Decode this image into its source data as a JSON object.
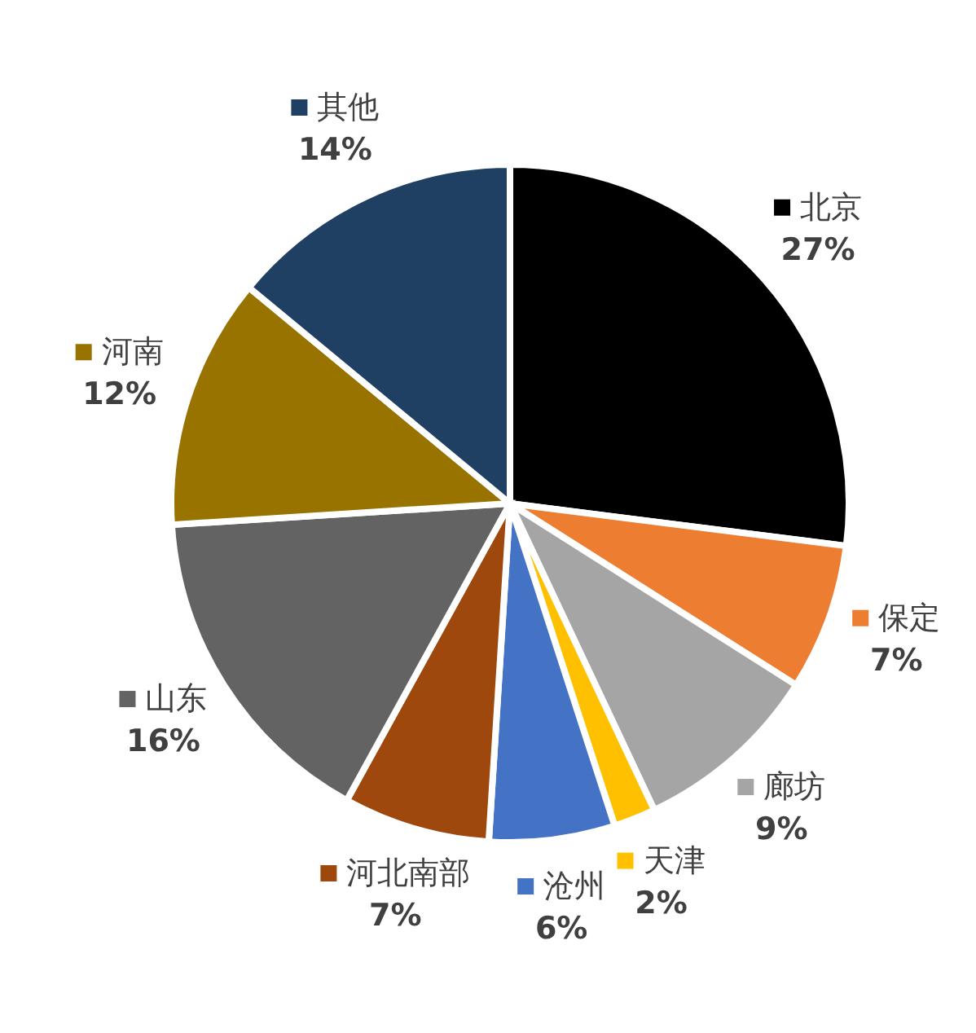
{
  "chart_data": {
    "type": "pie",
    "categories": [
      "北京",
      "保定",
      "廊坊",
      "天津",
      "沧州",
      "河北南部",
      "山东",
      "河南",
      "其他"
    ],
    "values": [
      27,
      7,
      9,
      2,
      6,
      7,
      16,
      12,
      14
    ],
    "value_labels": [
      "27%",
      "7%",
      "9%",
      "2%",
      "6%",
      "7%",
      "16%",
      "12%",
      "14%"
    ],
    "colors": [
      "#000000",
      "#ed7d31",
      "#a5a5a5",
      "#ffc000",
      "#4472c4",
      "#9e480e",
      "#636363",
      "#997300",
      "#1f3f63"
    ],
    "data_labels": true,
    "legend": true
  }
}
